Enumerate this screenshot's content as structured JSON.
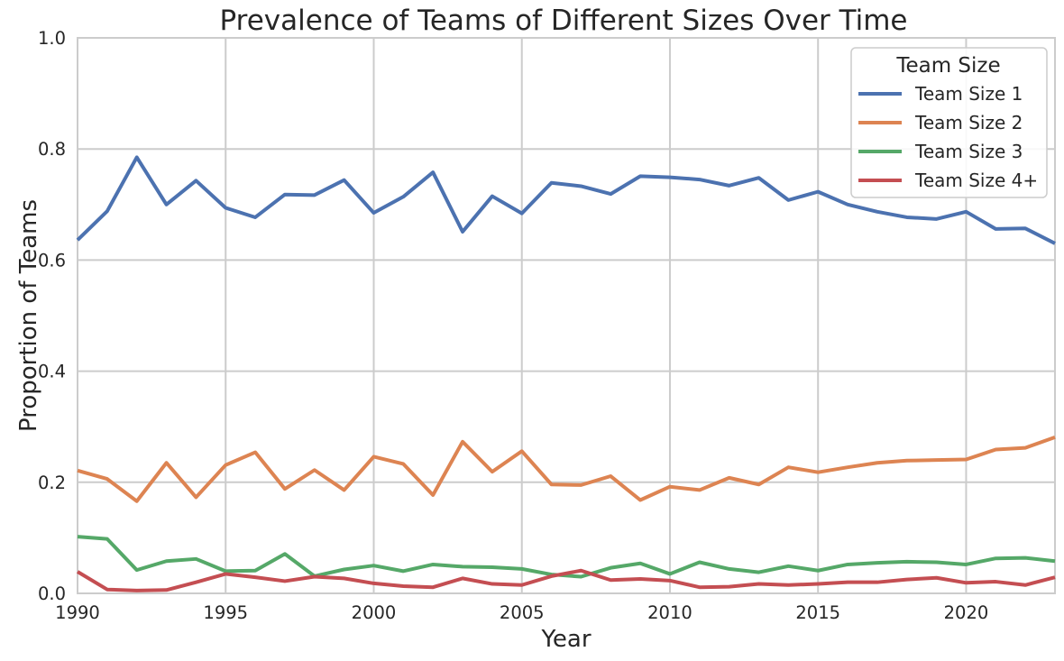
{
  "chart_data": {
    "type": "line",
    "title": "Prevalence of Teams of Different Sizes Over Time",
    "xlabel": "Year",
    "ylabel": "Proportion of Teams",
    "xlim": [
      1990,
      2023
    ],
    "ylim": [
      0.0,
      1.0
    ],
    "xticks": [
      1990,
      1995,
      2000,
      2005,
      2010,
      2015,
      2020
    ],
    "xtick_labels": [
      "1990",
      "1995",
      "2000",
      "2005",
      "2010",
      "2015",
      "2020"
    ],
    "yticks": [
      0.0,
      0.2,
      0.4,
      0.6,
      0.8,
      1.0
    ],
    "ytick_labels": [
      "0.0",
      "0.2",
      "0.4",
      "0.6",
      "0.8",
      "1.0"
    ],
    "grid": true,
    "legend": {
      "title": "Team Size",
      "position": "top-right"
    },
    "x": [
      1990,
      1991,
      1992,
      1993,
      1994,
      1995,
      1996,
      1997,
      1998,
      1999,
      2000,
      2001,
      2002,
      2003,
      2004,
      2005,
      2006,
      2007,
      2008,
      2009,
      2010,
      2011,
      2012,
      2013,
      2014,
      2015,
      2016,
      2017,
      2018,
      2019,
      2020,
      2021,
      2022,
      2023
    ],
    "series": [
      {
        "name": "Team Size 1",
        "color": "#4c72b0",
        "values": [
          0.636,
          0.688,
          0.785,
          0.7,
          0.743,
          0.694,
          0.677,
          0.718,
          0.717,
          0.744,
          0.685,
          0.714,
          0.758,
          0.651,
          0.715,
          0.684,
          0.739,
          0.733,
          0.719,
          0.751,
          0.749,
          0.745,
          0.734,
          0.748,
          0.708,
          0.723,
          0.7,
          0.687,
          0.677,
          0.674,
          0.687,
          0.656,
          0.657,
          0.63
        ]
      },
      {
        "name": "Team Size 2",
        "color": "#dd8452",
        "values": [
          0.221,
          0.206,
          0.166,
          0.235,
          0.173,
          0.231,
          0.254,
          0.188,
          0.222,
          0.186,
          0.246,
          0.233,
          0.177,
          0.273,
          0.219,
          0.256,
          0.196,
          0.195,
          0.211,
          0.168,
          0.192,
          0.186,
          0.208,
          0.196,
          0.227,
          0.218,
          0.227,
          0.235,
          0.239,
          0.24,
          0.241,
          0.259,
          0.262,
          0.281
        ]
      },
      {
        "name": "Team Size 3",
        "color": "#55a868",
        "values": [
          0.102,
          0.098,
          0.042,
          0.058,
          0.062,
          0.04,
          0.041,
          0.071,
          0.031,
          0.043,
          0.05,
          0.04,
          0.052,
          0.048,
          0.047,
          0.044,
          0.034,
          0.03,
          0.046,
          0.054,
          0.035,
          0.056,
          0.044,
          0.038,
          0.049,
          0.041,
          0.052,
          0.055,
          0.057,
          0.056,
          0.052,
          0.063,
          0.064,
          0.058
        ]
      },
      {
        "name": "Team Size 4+",
        "color": "#c44e52",
        "values": [
          0.039,
          0.007,
          0.005,
          0.006,
          0.02,
          0.035,
          0.029,
          0.022,
          0.03,
          0.027,
          0.018,
          0.013,
          0.011,
          0.027,
          0.017,
          0.015,
          0.031,
          0.041,
          0.024,
          0.026,
          0.023,
          0.011,
          0.012,
          0.017,
          0.015,
          0.017,
          0.02,
          0.02,
          0.025,
          0.028,
          0.019,
          0.021,
          0.015,
          0.029
        ]
      }
    ]
  }
}
